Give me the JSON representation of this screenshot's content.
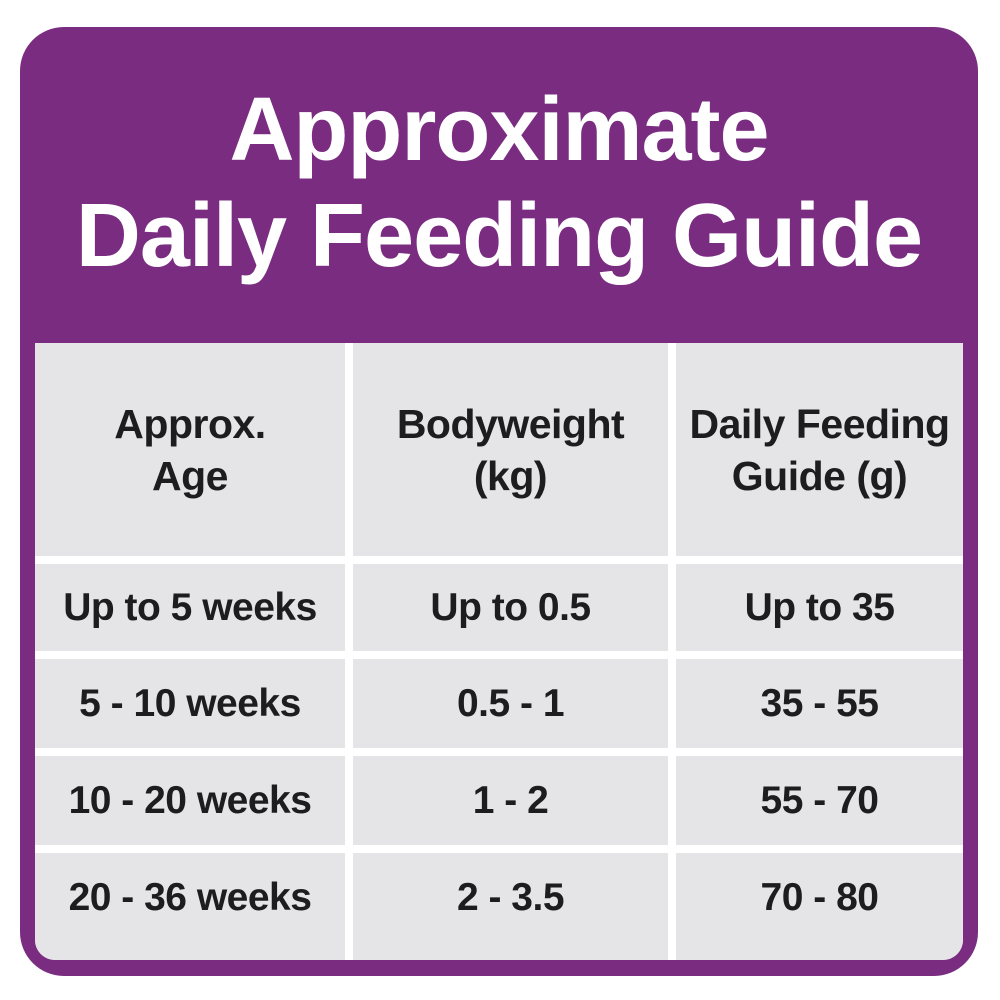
{
  "title": {
    "line1": "Approximate",
    "line2": "Daily Feeding Guide"
  },
  "table": {
    "headers": [
      "Approx.\nAge",
      "Bodyweight\n(kg)",
      "Daily Feeding\nGuide (g)"
    ],
    "rows": [
      [
        "Up to 5 weeks",
        "Up to 0.5",
        "Up to 35"
      ],
      [
        "5 - 10 weeks",
        "0.5 - 1",
        "35 - 55"
      ],
      [
        "10 - 20 weeks",
        "1 - 2",
        "55 - 70"
      ],
      [
        "20 - 36 weeks",
        "2 - 3.5",
        "70 - 80"
      ]
    ]
  },
  "colors": {
    "purple": "#7a2c81",
    "cell_gray": "#e5e4e6",
    "gutter_white": "#ffffff",
    "text_dark": "#1d1d1f",
    "title_white": "#ffffff"
  }
}
